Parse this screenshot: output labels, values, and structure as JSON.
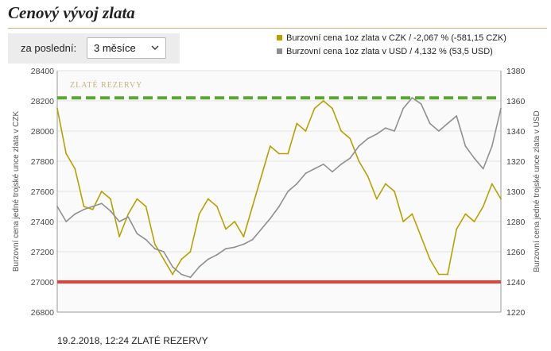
{
  "header": {
    "title": "Cenový vývoj zlata"
  },
  "controls": {
    "period_label": "za poslední:",
    "period_value": "3 měsíce"
  },
  "legend": {
    "czk_label": "Burzovní cena 1oz zlata v CZK / -2,067 % (-581,15 CZK)",
    "usd_label": "Burzovní cena 1oz zlata v USD / 4,132 % (53,5 USD)"
  },
  "footer": {
    "text": "19.2.2018, 12:24 ZLATÉ REZERVY"
  },
  "watermark": "ZLATÉ REZERVY",
  "colors": {
    "czk_line": "#b8a000",
    "usd_line": "#8f8f8f",
    "max_line": "#59a630",
    "min_line": "#e2413c",
    "plot_bg": "#fafafa",
    "grid": "#e2e2e2"
  },
  "chart_data": {
    "type": "line",
    "title": "",
    "ylabel_left": "Burzovní cena jedné trojské unce zlata v CZK",
    "ylabel_right": "Burzovní cena jedné trojské unce zlata v USD",
    "y_left_lim": [
      26800,
      28400
    ],
    "y_left_ticks": [
      26800,
      27000,
      27200,
      27400,
      27600,
      27800,
      28000,
      28200,
      28400
    ],
    "y_right_lim": [
      1220,
      1380
    ],
    "y_right_ticks": [
      1220,
      1240,
      1260,
      1280,
      1300,
      1320,
      1340,
      1360,
      1380
    ],
    "grid": true,
    "reference_lines": [
      {
        "axis": "left",
        "value": 28220,
        "style": "dashed"
      },
      {
        "axis": "left",
        "value": 27000,
        "style": "solid"
      }
    ],
    "series": [
      {
        "axis": "left",
        "x": [
          0,
          0.02,
          0.04,
          0.06,
          0.08,
          0.1,
          0.12,
          0.14,
          0.16,
          0.18,
          0.2,
          0.22,
          0.24,
          0.26,
          0.28,
          0.3,
          0.32,
          0.34,
          0.36,
          0.38,
          0.4,
          0.42,
          0.44,
          0.46,
          0.48,
          0.5,
          0.52,
          0.54,
          0.56,
          0.58,
          0.6,
          0.62,
          0.64,
          0.66,
          0.68,
          0.7,
          0.72,
          0.74,
          0.76,
          0.78,
          0.8,
          0.82,
          0.84,
          0.86,
          0.88,
          0.9,
          0.92,
          0.94,
          0.96,
          0.98,
          1.0
        ],
        "values": [
          28150,
          27850,
          27750,
          27500,
          27480,
          27600,
          27550,
          27300,
          27450,
          27550,
          27500,
          27250,
          27150,
          27050,
          27150,
          27200,
          27450,
          27550,
          27500,
          27350,
          27400,
          27300,
          27500,
          27700,
          27900,
          27850,
          27850,
          28050,
          28000,
          28150,
          28200,
          28150,
          28000,
          27950,
          27800,
          27700,
          27550,
          27650,
          27600,
          27400,
          27450,
          27300,
          27150,
          27050,
          27050,
          27350,
          27450,
          27400,
          27500,
          27650,
          27550
        ]
      },
      {
        "axis": "right",
        "x": [
          0,
          0.02,
          0.04,
          0.06,
          0.08,
          0.1,
          0.12,
          0.14,
          0.16,
          0.18,
          0.2,
          0.22,
          0.24,
          0.26,
          0.28,
          0.3,
          0.32,
          0.34,
          0.36,
          0.38,
          0.4,
          0.42,
          0.44,
          0.46,
          0.48,
          0.5,
          0.52,
          0.54,
          0.56,
          0.58,
          0.6,
          0.62,
          0.64,
          0.66,
          0.68,
          0.7,
          0.72,
          0.74,
          0.76,
          0.78,
          0.8,
          0.82,
          0.84,
          0.86,
          0.88,
          0.9,
          0.92,
          0.94,
          0.96,
          0.98,
          1.0
        ],
        "values": [
          1290,
          1280,
          1285,
          1288,
          1290,
          1292,
          1287,
          1280,
          1283,
          1272,
          1268,
          1262,
          1260,
          1250,
          1245,
          1243,
          1250,
          1255,
          1258,
          1262,
          1263,
          1265,
          1268,
          1275,
          1282,
          1290,
          1300,
          1305,
          1312,
          1315,
          1318,
          1313,
          1318,
          1322,
          1330,
          1335,
          1338,
          1342,
          1340,
          1355,
          1362,
          1358,
          1345,
          1340,
          1345,
          1350,
          1330,
          1322,
          1315,
          1330,
          1355
        ]
      }
    ]
  }
}
